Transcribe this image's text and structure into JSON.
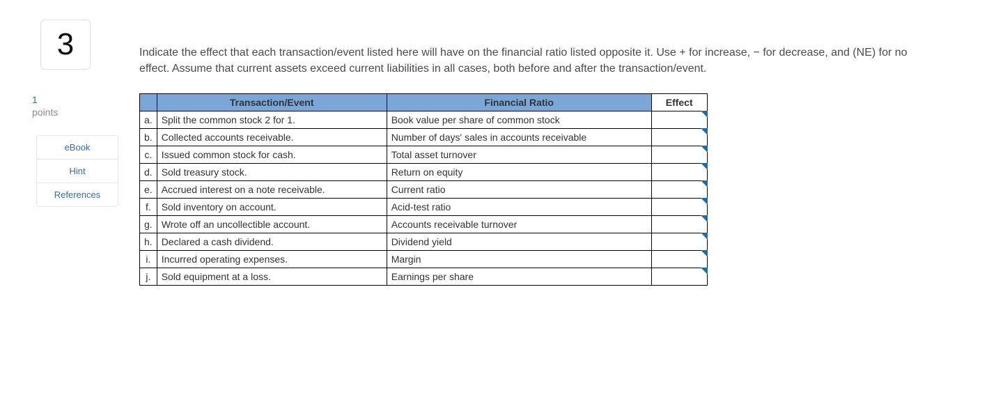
{
  "question_number": "3",
  "points": {
    "value": "1",
    "label": "points"
  },
  "sidebar_links": [
    "eBook",
    "Hint",
    "References"
  ],
  "instructions": "Indicate the effect that each transaction/event listed here will have on the financial ratio listed opposite it. Use + for increase, − for decrease, and (NE) for no effect. Assume that current assets exceed current liabilities in all cases, both before and after the transaction/event.",
  "table": {
    "headers": {
      "letter": "",
      "transaction": "Transaction/Event",
      "ratio": "Financial Ratio",
      "effect": "Effect"
    },
    "header_bg_blue": "#7aa7d7",
    "rows": [
      {
        "letter": "a.",
        "transaction": "Split the common stock 2 for 1.",
        "ratio": "Book value per share of common stock",
        "effect": ""
      },
      {
        "letter": "b.",
        "transaction": "Collected accounts receivable.",
        "ratio": "Number of days' sales in accounts receivable",
        "effect": ""
      },
      {
        "letter": "c.",
        "transaction": "Issued common stock for cash.",
        "ratio": "Total asset turnover",
        "effect": ""
      },
      {
        "letter": "d.",
        "transaction": "Sold treasury stock.",
        "ratio": "Return on equity",
        "effect": ""
      },
      {
        "letter": "e.",
        "transaction": "Accrued interest on a note receivable.",
        "ratio": "Current ratio",
        "effect": ""
      },
      {
        "letter": "f.",
        "transaction": "Sold inventory on account.",
        "ratio": "Acid-test ratio",
        "effect": ""
      },
      {
        "letter": "g.",
        "transaction": "Wrote off an uncollectible account.",
        "ratio": "Accounts receivable turnover",
        "effect": ""
      },
      {
        "letter": "h.",
        "transaction": "Declared a cash dividend.",
        "ratio": "Dividend yield",
        "effect": ""
      },
      {
        "letter": "i.",
        "transaction": "Incurred operating expenses.",
        "ratio": "Margin",
        "effect": ""
      },
      {
        "letter": "j.",
        "transaction": "Sold equipment at a loss.",
        "ratio": "Earnings per share",
        "effect": ""
      }
    ]
  }
}
